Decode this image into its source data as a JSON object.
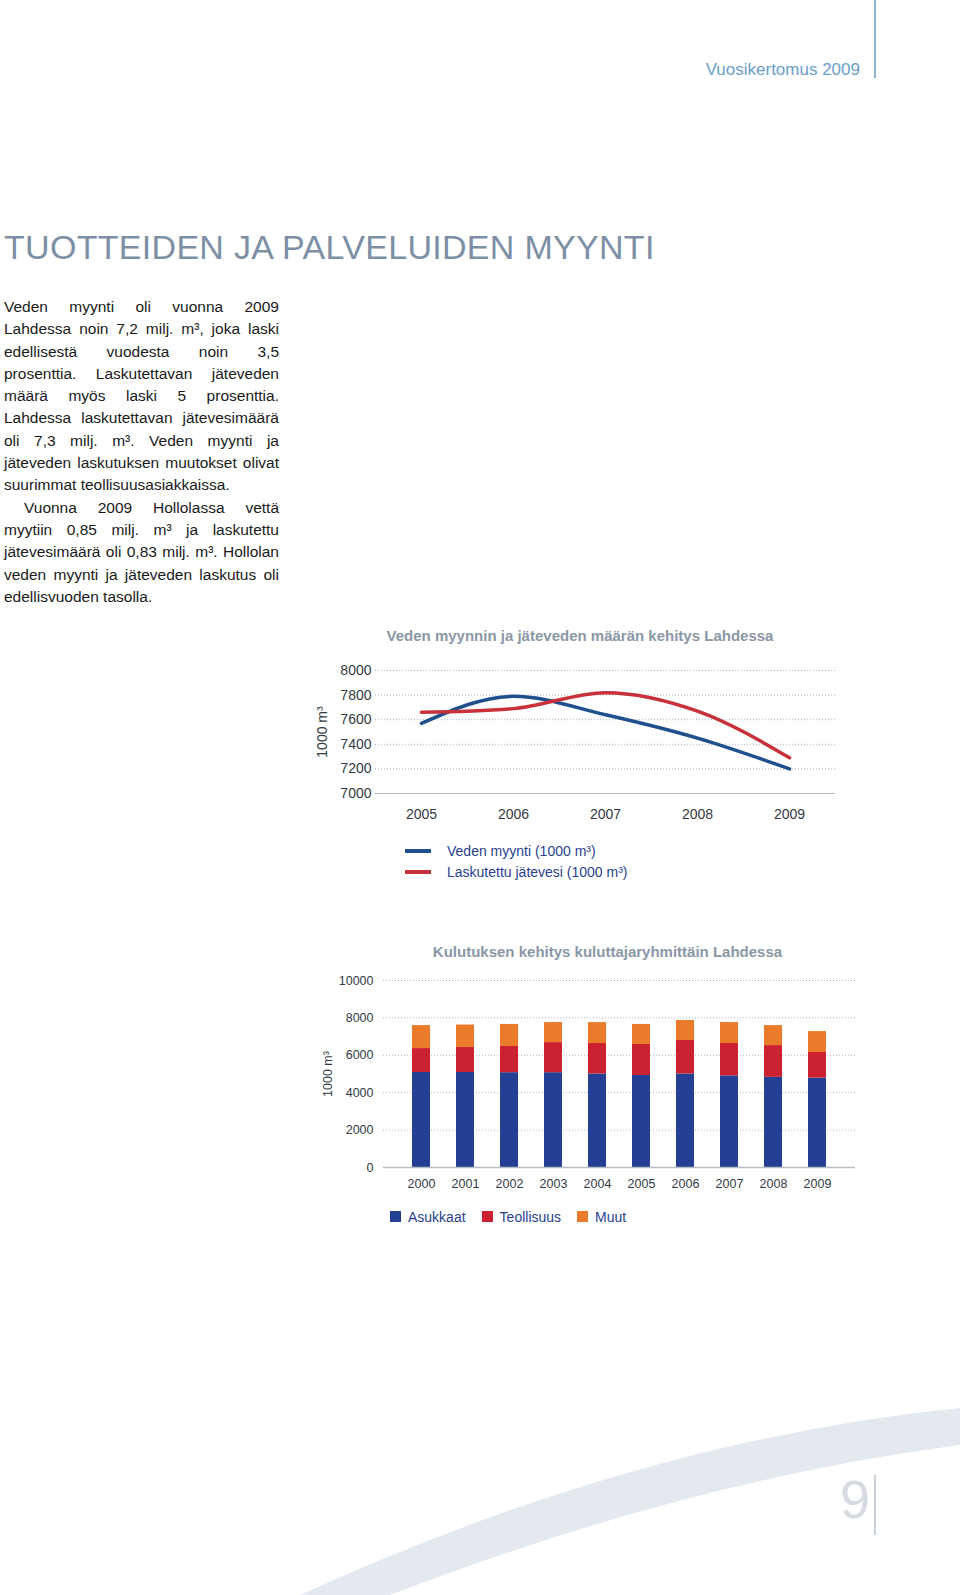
{
  "header": "Vuosikertomus 2009",
  "title": "TUOTTEIDEN JA PALVELUIDEN MYYNTI",
  "paragraphs": [
    "Veden myynti oli vuonna 2009 Lahdessa noin 7,2 milj. m³, joka laski edellisestä vuodesta noin 3,5 prosenttia. Laskutettavan jäteveden määrä myös laski 5 prosenttia. Lahdessa laskutettavan jätevesimäärä oli 7,3 milj. m³. Veden myynti ja jäteveden laskutuksen muutokset olivat suurimmat teollisuusasiakkaissa.",
    "Vuonna 2009 Hollolassa vettä myytiin 0,85 milj. m³ ja laskutettu jätevesimäärä oli 0,83 milj. m³. Hollolan veden myynti ja jäteveden laskutus oli edellisvuoden tasolla."
  ],
  "page_number": 9,
  "chart_data": [
    {
      "type": "line",
      "title": "Veden myynnin ja jäteveden määrän kehitys Lahdessa",
      "y_label": "1000 m³",
      "categories": [
        "2005",
        "2006",
        "2007",
        "2008",
        "2009"
      ],
      "series": [
        {
          "name": "Veden myynti (1000 m³)",
          "color": "#1f4f8c",
          "values": [
            7570,
            7790,
            7640,
            7450,
            7200
          ]
        },
        {
          "name": "Laskutettu jätevesi (1000 m³)",
          "color": "#c8303a",
          "values": [
            7660,
            7690,
            7820,
            7670,
            7290
          ]
        }
      ],
      "ylim": [
        7000,
        8000
      ],
      "yticks": [
        7000,
        7200,
        7400,
        7600,
        7800,
        8000
      ],
      "grid": true,
      "legend": "bottom"
    },
    {
      "type": "bar",
      "stacked": true,
      "title": "Kulutuksen kehitys kuluttajaryhmittäin Lahdessa",
      "y_label": "1000 m³",
      "categories": [
        "2000",
        "2001",
        "2002",
        "2003",
        "2004",
        "2005",
        "2006",
        "2007",
        "2008",
        "2009"
      ],
      "series": [
        {
          "name": "Asukkaat",
          "color": "#253f94",
          "values": [
            5080,
            5080,
            5070,
            5070,
            5000,
            4920,
            5000,
            4900,
            4820,
            4780
          ]
        },
        {
          "name": "Teollisuus",
          "color": "#cc2131",
          "values": [
            1280,
            1340,
            1400,
            1610,
            1630,
            1660,
            1790,
            1730,
            1700,
            1370
          ]
        },
        {
          "name": "Muut",
          "color": "#e97b2b",
          "values": [
            1230,
            1200,
            1180,
            1070,
            1120,
            1070,
            1070,
            1120,
            1070,
            1120
          ]
        }
      ],
      "ylim": [
        0,
        10000
      ],
      "yticks": [
        0,
        2000,
        4000,
        6000,
        8000,
        10000
      ],
      "grid": true,
      "legend": "bottom"
    }
  ]
}
